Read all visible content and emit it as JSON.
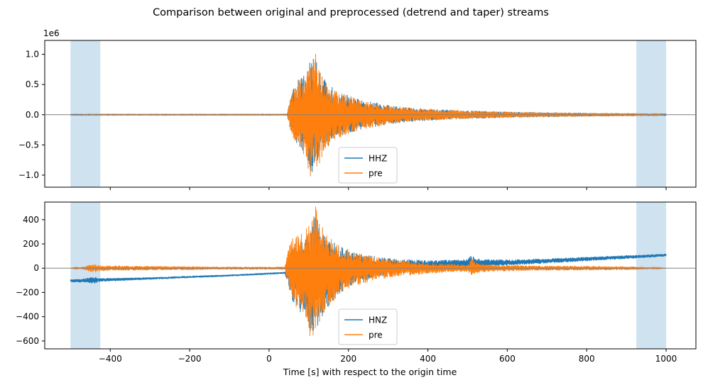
{
  "figure_title": "Comparison between original and preprocessed (detrend and taper) streams",
  "shared_xlabel": "Time [s] with respect to the origin time",
  "chart_data": [
    {
      "type": "line",
      "title": "",
      "xlabel": "",
      "ylabel": "",
      "offset_text": "1e6",
      "xlim": [
        -565,
        1075
      ],
      "ylim": [
        -1.2,
        1.23
      ],
      "x_ticks": [
        -400,
        -200,
        0,
        200,
        400,
        600,
        800,
        1000
      ],
      "y_ticks": [
        -1.0,
        -0.5,
        0.0,
        0.5,
        1.0
      ],
      "y_tick_labels": [
        "−1.0",
        "−0.5",
        "0.0",
        "0.5",
        "1.0"
      ],
      "show_x_tick_labels": false,
      "zero_line": 0,
      "taper_spans": [
        [
          -500,
          -425
        ],
        [
          925,
          1000
        ]
      ],
      "legend": {
        "placement": "lower-center",
        "entries": [
          "HHZ",
          "pre"
        ]
      },
      "series": [
        {
          "name": "HHZ",
          "color": "#1f77b4",
          "envelope": [
            [
              -500,
              0.005
            ],
            [
              45,
              0.005
            ],
            [
              48,
              0.12
            ],
            [
              60,
              0.45
            ],
            [
              75,
              0.6
            ],
            [
              90,
              0.65
            ],
            [
              100,
              0.85
            ],
            [
              110,
              0.95
            ],
            [
              118,
              1.12
            ],
            [
              125,
              0.75
            ],
            [
              140,
              0.6
            ],
            [
              160,
              0.45
            ],
            [
              180,
              0.38
            ],
            [
              200,
              0.32
            ],
            [
              240,
              0.24
            ],
            [
              300,
              0.16
            ],
            [
              350,
              0.12
            ],
            [
              400,
              0.1
            ],
            [
              500,
              0.07
            ],
            [
              600,
              0.05
            ],
            [
              700,
              0.04
            ],
            [
              800,
              0.03
            ],
            [
              900,
              0.025
            ],
            [
              1000,
              0.02
            ]
          ],
          "neg_envelope": [
            [
              -500,
              0.005
            ],
            [
              45,
              0.005
            ],
            [
              48,
              0.12
            ],
            [
              60,
              0.4
            ],
            [
              80,
              0.55
            ],
            [
              95,
              0.8
            ],
            [
              105,
              1.05
            ],
            [
              112,
              0.9
            ],
            [
              125,
              0.85
            ],
            [
              140,
              0.6
            ],
            [
              160,
              0.45
            ],
            [
              180,
              0.38
            ],
            [
              200,
              0.32
            ],
            [
              240,
              0.24
            ],
            [
              300,
              0.16
            ],
            [
              350,
              0.12
            ],
            [
              400,
              0.1
            ],
            [
              500,
              0.07
            ],
            [
              600,
              0.05
            ],
            [
              700,
              0.04
            ],
            [
              800,
              0.03
            ],
            [
              900,
              0.025
            ],
            [
              1000,
              0.02
            ]
          ],
          "baseline": [
            [
              -500,
              0
            ],
            [
              1000,
              0
            ]
          ]
        },
        {
          "name": "pre",
          "color": "#ff7f0e",
          "envelope": [
            [
              -500,
              0.0
            ],
            [
              -425,
              0.005
            ],
            [
              45,
              0.005
            ],
            [
              48,
              0.12
            ],
            [
              60,
              0.45
            ],
            [
              75,
              0.6
            ],
            [
              90,
              0.65
            ],
            [
              100,
              0.85
            ],
            [
              110,
              0.95
            ],
            [
              118,
              1.12
            ],
            [
              125,
              0.75
            ],
            [
              140,
              0.6
            ],
            [
              160,
              0.45
            ],
            [
              180,
              0.38
            ],
            [
              200,
              0.32
            ],
            [
              240,
              0.24
            ],
            [
              300,
              0.16
            ],
            [
              350,
              0.12
            ],
            [
              400,
              0.1
            ],
            [
              500,
              0.07
            ],
            [
              600,
              0.05
            ],
            [
              700,
              0.04
            ],
            [
              800,
              0.03
            ],
            [
              925,
              0.025
            ],
            [
              1000,
              0.0
            ]
          ],
          "neg_envelope": [
            [
              -500,
              0.0
            ],
            [
              -425,
              0.005
            ],
            [
              45,
              0.005
            ],
            [
              48,
              0.12
            ],
            [
              60,
              0.4
            ],
            [
              80,
              0.55
            ],
            [
              95,
              0.8
            ],
            [
              105,
              1.1
            ],
            [
              112,
              0.9
            ],
            [
              125,
              0.85
            ],
            [
              140,
              0.6
            ],
            [
              160,
              0.45
            ],
            [
              180,
              0.38
            ],
            [
              200,
              0.32
            ],
            [
              240,
              0.24
            ],
            [
              300,
              0.16
            ],
            [
              350,
              0.12
            ],
            [
              400,
              0.1
            ],
            [
              500,
              0.07
            ],
            [
              600,
              0.05
            ],
            [
              700,
              0.04
            ],
            [
              800,
              0.03
            ],
            [
              925,
              0.025
            ],
            [
              1000,
              0.0
            ]
          ],
          "baseline": [
            [
              -500,
              0
            ],
            [
              1000,
              0
            ]
          ]
        }
      ]
    },
    {
      "type": "line",
      "title": "",
      "xlabel": "Time [s] with respect to the origin time",
      "ylabel": "",
      "xlim": [
        -565,
        1075
      ],
      "ylim": [
        -665,
        545
      ],
      "x_ticks": [
        -400,
        -200,
        0,
        200,
        400,
        600,
        800,
        1000
      ],
      "x_tick_labels": [
        "−400",
        "−200",
        "0",
        "200",
        "400",
        "600",
        "800",
        "1000"
      ],
      "y_ticks": [
        -600,
        -400,
        -200,
        0,
        200,
        400
      ],
      "y_tick_labels": [
        "−600",
        "−400",
        "−200",
        "0",
        "200",
        "400"
      ],
      "show_x_tick_labels": true,
      "zero_line": 0,
      "taper_spans": [
        [
          -500,
          -425
        ],
        [
          925,
          1000
        ]
      ],
      "legend": {
        "placement": "lower-center",
        "entries": [
          "HNZ",
          "pre"
        ]
      },
      "series": [
        {
          "name": "HNZ",
          "color": "#1f77b4",
          "baseline": [
            [
              -500,
              -105
            ],
            [
              -300,
              -85
            ],
            [
              -100,
              -60
            ],
            [
              0,
              -45
            ],
            [
              40,
              -38
            ],
            [
              100,
              -10
            ],
            [
              200,
              0
            ],
            [
              400,
              25
            ],
            [
              500,
              40
            ],
            [
              600,
              45
            ],
            [
              800,
              75
            ],
            [
              1000,
              108
            ]
          ],
          "envelope": [
            [
              -500,
              12
            ],
            [
              -470,
              15
            ],
            [
              -440,
              30
            ],
            [
              -430,
              15
            ],
            [
              -300,
              10
            ],
            [
              -100,
              8
            ],
            [
              40,
              8
            ],
            [
              48,
              80
            ],
            [
              60,
              200
            ],
            [
              80,
              250
            ],
            [
              100,
              300
            ],
            [
              110,
              380
            ],
            [
              118,
              450
            ],
            [
              130,
              320
            ],
            [
              150,
              260
            ],
            [
              180,
              180
            ],
            [
              220,
              120
            ],
            [
              300,
              70
            ],
            [
              400,
              40
            ],
            [
              500,
              35
            ],
            [
              510,
              70
            ],
            [
              530,
              35
            ],
            [
              600,
              25
            ],
            [
              700,
              20
            ],
            [
              800,
              18
            ],
            [
              900,
              15
            ],
            [
              1000,
              12
            ]
          ],
          "neg_envelope": [
            [
              -500,
              12
            ],
            [
              -470,
              15
            ],
            [
              -440,
              30
            ],
            [
              -430,
              15
            ],
            [
              -300,
              10
            ],
            [
              -100,
              8
            ],
            [
              40,
              8
            ],
            [
              48,
              100
            ],
            [
              60,
              260
            ],
            [
              80,
              350
            ],
            [
              95,
              430
            ],
            [
              105,
              560
            ],
            [
              115,
              520
            ],
            [
              130,
              420
            ],
            [
              150,
              310
            ],
            [
              180,
              200
            ],
            [
              220,
              120
            ],
            [
              300,
              70
            ],
            [
              400,
              40
            ],
            [
              500,
              35
            ],
            [
              510,
              60
            ],
            [
              530,
              35
            ],
            [
              600,
              25
            ],
            [
              700,
              20
            ],
            [
              800,
              18
            ],
            [
              900,
              15
            ],
            [
              1000,
              12
            ]
          ]
        },
        {
          "name": "pre",
          "color": "#ff7f0e",
          "baseline": [
            [
              -500,
              0
            ],
            [
              1000,
              0
            ]
          ],
          "envelope": [
            [
              -500,
              0
            ],
            [
              -470,
              10
            ],
            [
              -440,
              40
            ],
            [
              -425,
              25
            ],
            [
              -400,
              22
            ],
            [
              -300,
              18
            ],
            [
              -200,
              15
            ],
            [
              -100,
              12
            ],
            [
              40,
              12
            ],
            [
              48,
              150
            ],
            [
              60,
              270
            ],
            [
              80,
              280
            ],
            [
              100,
              350
            ],
            [
              110,
              420
            ],
            [
              118,
              545
            ],
            [
              130,
              360
            ],
            [
              150,
              270
            ],
            [
              180,
              190
            ],
            [
              220,
              130
            ],
            [
              300,
              75
            ],
            [
              400,
              45
            ],
            [
              500,
              30
            ],
            [
              510,
              80
            ],
            [
              530,
              35
            ],
            [
              600,
              25
            ],
            [
              700,
              20
            ],
            [
              800,
              18
            ],
            [
              925,
              14
            ],
            [
              1000,
              0
            ]
          ],
          "neg_envelope": [
            [
              -500,
              0
            ],
            [
              -470,
              10
            ],
            [
              -440,
              40
            ],
            [
              -425,
              25
            ],
            [
              -400,
              22
            ],
            [
              -300,
              18
            ],
            [
              -200,
              15
            ],
            [
              -100,
              12
            ],
            [
              40,
              12
            ],
            [
              48,
              150
            ],
            [
              60,
              300
            ],
            [
              80,
              380
            ],
            [
              95,
              450
            ],
            [
              105,
              590
            ],
            [
              115,
              560
            ],
            [
              130,
              430
            ],
            [
              150,
              320
            ],
            [
              180,
              210
            ],
            [
              220,
              140
            ],
            [
              300,
              80
            ],
            [
              400,
              45
            ],
            [
              500,
              30
            ],
            [
              510,
              60
            ],
            [
              530,
              35
            ],
            [
              600,
              25
            ],
            [
              700,
              20
            ],
            [
              800,
              18
            ],
            [
              925,
              14
            ],
            [
              1000,
              0
            ]
          ]
        }
      ]
    }
  ],
  "colors": {
    "hhz": "#1f77b4",
    "pre": "#ff7f0e",
    "taper_fill": "#cfe2f0",
    "zero_line": "#808080"
  }
}
